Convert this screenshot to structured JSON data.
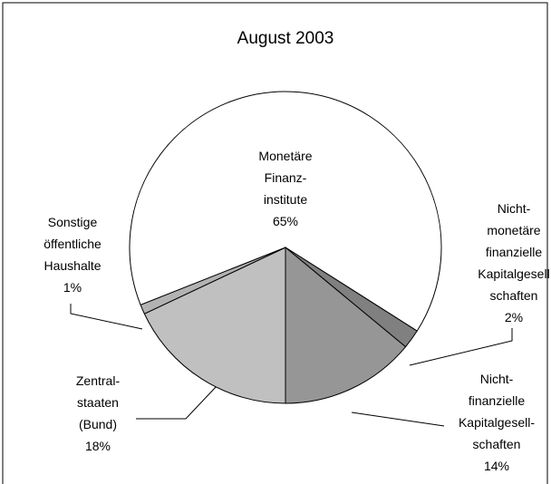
{
  "chart_data": {
    "type": "pie",
    "title": "August 2003",
    "categories": [
      "Zentral-\nstaaten\n(Bund)",
      "Sonstige\nöffentliche\nHaushalte",
      "Monetäre\nFinanz-\ninstitute",
      "Nicht-\nmonetäre\nfinanzielle\nKapitalgesell\nschaften",
      "Nicht-\nfinanzielle\nKapitalgesell-\nschaften"
    ],
    "values": [
      18,
      1,
      65,
      2,
      14
    ],
    "value_labels": [
      "18%",
      "1%",
      "65%",
      "2%",
      "14%"
    ],
    "colors": [
      "#c0c0c0",
      "#b2b2b2",
      "#ffffff",
      "#808080",
      "#969696"
    ]
  }
}
